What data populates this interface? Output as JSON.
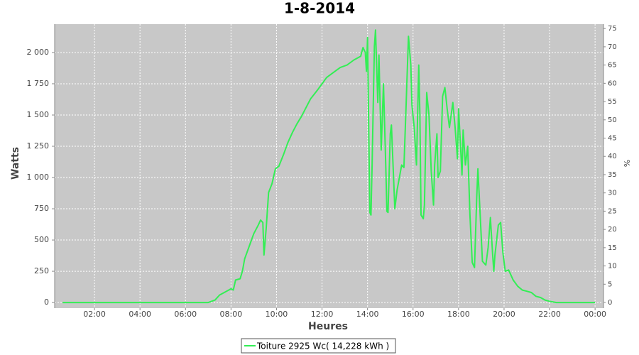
{
  "chart_data": {
    "type": "line",
    "title": "1-8-2014",
    "x_label": "Heures",
    "y_label": "Watts",
    "y2_label": "%",
    "x": [
      0.6,
      7.0,
      7.3,
      7.5,
      7.7,
      7.9,
      8.0,
      8.1,
      8.2,
      8.4,
      8.5,
      8.6,
      8.8,
      9.0,
      9.2,
      9.3,
      9.4,
      9.45,
      9.55,
      9.65,
      9.8,
      9.95,
      10.1,
      10.3,
      10.5,
      10.7,
      10.9,
      11.1,
      11.3,
      11.5,
      11.8,
      12.0,
      12.2,
      12.5,
      12.8,
      13.1,
      13.4,
      13.7,
      13.8,
      13.9,
      13.95,
      14.0,
      14.05,
      14.1,
      14.15,
      14.2,
      14.3,
      14.35,
      14.45,
      14.5,
      14.6,
      14.7,
      14.8,
      14.85,
      14.9,
      15.0,
      15.05,
      15.2,
      15.3,
      15.5,
      15.6,
      15.7,
      15.8,
      15.9,
      15.95,
      16.05,
      16.15,
      16.25,
      16.3,
      16.35,
      16.45,
      16.5,
      16.6,
      16.7,
      16.8,
      16.9,
      16.95,
      17.05,
      17.1,
      17.2,
      17.3,
      17.4,
      17.5,
      17.6,
      17.75,
      17.85,
      17.95,
      18.0,
      18.1,
      18.15,
      18.2,
      18.3,
      18.4,
      18.5,
      18.6,
      18.7,
      18.8,
      18.85,
      18.95,
      19.05,
      19.2,
      19.3,
      19.4,
      19.5,
      19.55,
      19.6,
      19.75,
      19.85,
      19.95,
      20.05,
      20.2,
      20.4,
      20.6,
      20.8,
      21.0,
      21.2,
      21.4,
      21.6,
      21.8,
      22.0,
      22.3,
      24.0
    ],
    "series": [
      {
        "name": "Toiture 2925 Wc( 14,228 kWh )",
        "color": "#33ee55",
        "values": [
          0,
          0,
          20,
          60,
          80,
          100,
          110,
          100,
          180,
          190,
          250,
          350,
          450,
          550,
          620,
          660,
          640,
          380,
          600,
          880,
          950,
          1070,
          1090,
          1180,
          1280,
          1360,
          1430,
          1490,
          1560,
          1630,
          1700,
          1750,
          1800,
          1840,
          1880,
          1900,
          1940,
          1970,
          2040,
          2000,
          1850,
          2120,
          1400,
          720,
          700,
          1100,
          2050,
          2180,
          1600,
          1980,
          1220,
          1750,
          1100,
          730,
          720,
          1350,
          1420,
          750,
          900,
          1100,
          1080,
          1600,
          2130,
          1900,
          1580,
          1400,
          1100,
          1900,
          1500,
          700,
          670,
          780,
          1680,
          1500,
          1050,
          780,
          1100,
          1350,
          1000,
          1050,
          1650,
          1720,
          1550,
          1400,
          1600,
          1400,
          1150,
          1550,
          1200,
          1020,
          1380,
          1100,
          1250,
          700,
          320,
          280,
          850,
          1070,
          700,
          330,
          300,
          440,
          680,
          380,
          250,
          380,
          620,
          640,
          400,
          250,
          260,
          180,
          130,
          100,
          90,
          80,
          50,
          40,
          20,
          10,
          0,
          0
        ]
      }
    ],
    "xlim": [
      0.25,
      24.37
    ],
    "xticks": [
      {
        "value": 2,
        "label": "02:00"
      },
      {
        "value": 4,
        "label": "04:00"
      },
      {
        "value": 6,
        "label": "06:00"
      },
      {
        "value": 8,
        "label": "08:00"
      },
      {
        "value": 10,
        "label": "10:00"
      },
      {
        "value": 12,
        "label": "12:00"
      },
      {
        "value": 14,
        "label": "14:00"
      },
      {
        "value": 16,
        "label": "16:00"
      },
      {
        "value": 18,
        "label": "18:00"
      },
      {
        "value": 20,
        "label": "20:00"
      },
      {
        "value": 22,
        "label": "22:00"
      },
      {
        "value": 24,
        "label": "00:00"
      }
    ],
    "ylim": [
      -45,
      2227
    ],
    "yticks": [
      0,
      250,
      500,
      750,
      {
        "value": 1000,
        "label": "1 000"
      },
      {
        "value": 1250,
        "label": "1 250"
      },
      {
        "value": 1500,
        "label": "1 500"
      },
      {
        "value": 1750,
        "label": "1 750"
      },
      {
        "value": 2000,
        "label": "2 000"
      }
    ],
    "y2lim": [
      -1.55,
      76.2
    ],
    "y2ticks": [
      0,
      5,
      10,
      15,
      20,
      25,
      30,
      35,
      40,
      45,
      50,
      55,
      60,
      65,
      70,
      75
    ],
    "grid": true
  }
}
